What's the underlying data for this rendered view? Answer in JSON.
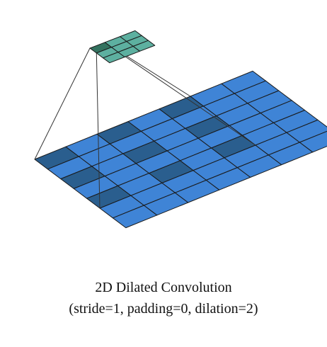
{
  "diagram": {
    "title": "2D Dilated Convolution",
    "subtitle": "(stride=1, padding=0, dilation=2)",
    "input_grid": {
      "rows": 7,
      "cols": 7,
      "cell_color": "#3f84d6",
      "highlight_color": "#2a5e8e",
      "highlighted_cells": [
        [
          0,
          0
        ],
        [
          0,
          2
        ],
        [
          0,
          4
        ],
        [
          2,
          0
        ],
        [
          2,
          2
        ],
        [
          2,
          4
        ],
        [
          4,
          0
        ],
        [
          4,
          2
        ],
        [
          4,
          4
        ]
      ]
    },
    "output_grid": {
      "rows": 3,
      "cols": 3,
      "cell_color": "#5db0a0",
      "highlight_color": "#33725f",
      "highlighted_cells": [
        [
          0,
          0
        ]
      ]
    },
    "line_color": "#333333",
    "grid_line_color": "#1a1a1a"
  }
}
